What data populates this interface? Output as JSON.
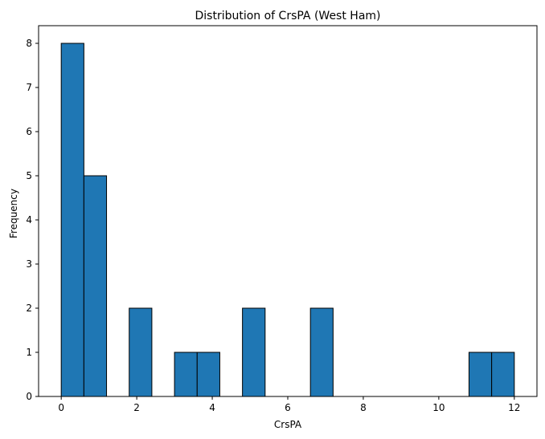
{
  "chart_data": {
    "type": "bar",
    "title": "Distribution of CrsPA (West Ham)",
    "xlabel": "CrsPA",
    "ylabel": "Frequency",
    "xlim": [
      -0.6,
      12.6
    ],
    "ylim": [
      0,
      8.4
    ],
    "xticks": [
      0,
      2,
      4,
      6,
      8,
      10,
      12
    ],
    "xtick_labels": [
      "0",
      "2",
      "4",
      "6",
      "8",
      "10",
      "12"
    ],
    "yticks": [
      0,
      1,
      2,
      3,
      4,
      5,
      6,
      7,
      8
    ],
    "ytick_labels": [
      "0",
      "1",
      "2",
      "3",
      "4",
      "5",
      "6",
      "7",
      "8"
    ],
    "bin_edges": [
      0,
      0.6,
      1.2,
      1.8,
      2.4,
      3.0,
      3.6,
      4.2,
      4.8,
      5.4,
      6.0,
      6.6,
      7.2,
      7.8,
      8.4,
      9.0,
      9.6,
      10.2,
      10.8,
      11.4,
      12.0
    ],
    "values": [
      8,
      5,
      0,
      2,
      0,
      1,
      1,
      0,
      2,
      0,
      0,
      2,
      0,
      0,
      0,
      0,
      0,
      0,
      1,
      1
    ],
    "bar_color": "#1f77b4",
    "edge_color": "#000000",
    "grid": false,
    "legend": "none"
  }
}
